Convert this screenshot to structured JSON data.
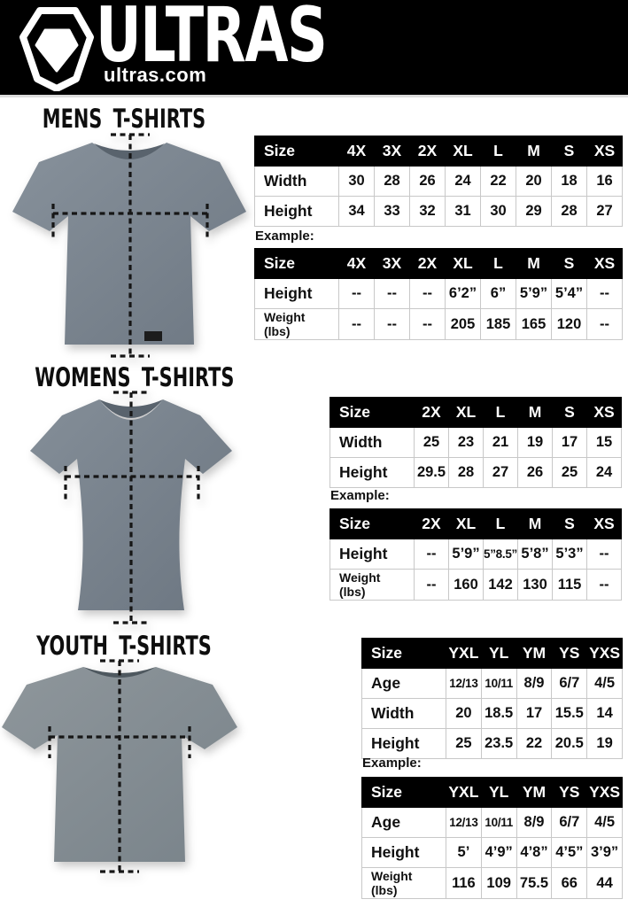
{
  "header": {
    "brand": "ULTRAS",
    "site": "ultras.com"
  },
  "mens": {
    "title": "MENS T-SHIRTS",
    "example_label": "Example:",
    "size_table": {
      "header": [
        "Size",
        "4X",
        "3X",
        "2X",
        "XL",
        "L",
        "M",
        "S",
        "XS"
      ],
      "rows": [
        {
          "label": "Width",
          "values": [
            "30",
            "28",
            "26",
            "24",
            "22",
            "20",
            "18",
            "16"
          ]
        },
        {
          "label": "Height",
          "values": [
            "34",
            "33",
            "32",
            "31",
            "30",
            "29",
            "28",
            "27"
          ]
        }
      ]
    },
    "example_table": {
      "header": [
        "Size",
        "4X",
        "3X",
        "2X",
        "XL",
        "L",
        "M",
        "S",
        "XS"
      ],
      "rows": [
        {
          "label": "Height",
          "values": [
            "--",
            "--",
            "--",
            "6’2”",
            "6”",
            "5’9”",
            "5’4”",
            "--"
          ]
        },
        {
          "label": "Weight\n(lbs)",
          "values": [
            "--",
            "--",
            "--",
            "205",
            "185",
            "165",
            "120",
            "--"
          ]
        }
      ]
    }
  },
  "womens": {
    "title": "WOMENS T-SHIRTS",
    "example_label": "Example:",
    "size_table": {
      "header": [
        "Size",
        "2X",
        "XL",
        "L",
        "M",
        "S",
        "XS"
      ],
      "rows": [
        {
          "label": "Width",
          "values": [
            "25",
            "23",
            "21",
            "19",
            "17",
            "15"
          ]
        },
        {
          "label": "Height",
          "values": [
            "29.5",
            "28",
            "27",
            "26",
            "25",
            "24"
          ]
        }
      ]
    },
    "example_table": {
      "header": [
        "Size",
        "2X",
        "XL",
        "L",
        "M",
        "S",
        "XS"
      ],
      "rows": [
        {
          "label": "Height",
          "values": [
            "--",
            "5’9”",
            "5”8.5”",
            "5’8”",
            "5’3”",
            "--"
          ]
        },
        {
          "label": "Weight\n(lbs)",
          "values": [
            "--",
            "160",
            "142",
            "130",
            "115",
            "--"
          ]
        }
      ]
    }
  },
  "youth": {
    "title": "YOUTH T-SHIRTS",
    "example_label": "Example:",
    "size_table": {
      "header": [
        "Size",
        "YXL",
        "YL",
        "YM",
        "YS",
        "YXS"
      ],
      "rows": [
        {
          "label": "Age",
          "values": [
            "12/13",
            "10/11",
            "8/9",
            "6/7",
            "4/5"
          ]
        },
        {
          "label": "Width",
          "values": [
            "20",
            "18.5",
            "17",
            "15.5",
            "14"
          ]
        },
        {
          "label": "Height",
          "values": [
            "25",
            "23.5",
            "22",
            "20.5",
            "19"
          ]
        }
      ]
    },
    "example_table": {
      "header": [
        "Size",
        "YXL",
        "YL",
        "YM",
        "YS",
        "YXS"
      ],
      "rows": [
        {
          "label": "Age",
          "values": [
            "12/13",
            "10/11",
            "8/9",
            "6/7",
            "4/5"
          ]
        },
        {
          "label": "Height",
          "values": [
            "5’",
            "4’9”",
            "4’8”",
            "4’5”",
            "3’9”"
          ]
        },
        {
          "label": "Weight\n(lbs)",
          "values": [
            "116",
            "109",
            "75.5",
            "66",
            "44"
          ]
        }
      ]
    }
  }
}
